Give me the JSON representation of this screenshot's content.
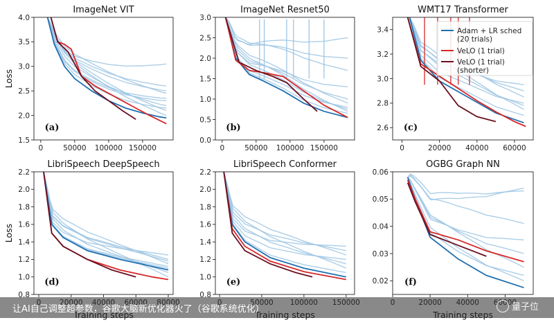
{
  "colors": {
    "adam": "#1f6fb0",
    "adam_faint": "#9ec6e3",
    "velo": "#d62728",
    "velo_short": "#6b0f1f"
  },
  "caption": {
    "text": "让AI自己调整超参数，谷歌大脑新优化器火了（谷歌系统优化）",
    "watermark": "量子位",
    "watermark_icon": "circle-logo"
  },
  "legend": {
    "entries": [
      "Adam + LR sched",
      " (20 trials)",
      "VeLO (1 trial)",
      "VeLO (1 trial)",
      " (shorter)"
    ],
    "placement": "top-right of WMT17 Transformer panel"
  },
  "chart_data": [
    {
      "type": "line",
      "title": "ImageNet VIT",
      "panel": "(a)",
      "ylabel": "Loss",
      "xlabel": "",
      "ylim": [
        1.5,
        4.0
      ],
      "xlim": [
        -10000,
        195000
      ],
      "xticks": [
        0,
        50000,
        100000,
        150000
      ],
      "xtick_labels": [
        "0",
        "50000",
        "100000",
        "150000"
      ],
      "yticks": [
        1.5,
        2.0,
        2.5,
        3.0,
        3.5,
        4.0
      ],
      "ytick_labels": [
        "1.5",
        "2.0",
        "2.5",
        "3.0",
        "3.5",
        "4.0"
      ],
      "adam_best": {
        "x": [
          10000,
          20000,
          35000,
          50000,
          75000,
          100000,
          125000,
          150000,
          175000,
          185000
        ],
        "y": [
          4.0,
          3.45,
          3.0,
          2.75,
          2.5,
          2.3,
          2.15,
          2.05,
          1.97,
          1.95
        ]
      },
      "adam_trials_final": [
        3.05,
        2.6,
        2.45,
        2.35,
        2.2,
        2.1,
        2.3,
        2.5,
        2.0,
        2.15
      ],
      "velo": {
        "x": [
          15000,
          25000,
          35000,
          45000,
          60000,
          80000,
          100000,
          120000,
          140000,
          160000,
          185000
        ],
        "y": [
          4.0,
          3.5,
          3.45,
          3.35,
          2.8,
          2.6,
          2.45,
          2.3,
          2.15,
          2.0,
          1.83
        ]
      },
      "velo_shorter": {
        "x": [
          15000,
          25000,
          40000,
          60000,
          80000,
          100000,
          120000,
          140000
        ],
        "y": [
          4.0,
          3.5,
          3.3,
          2.8,
          2.5,
          2.3,
          2.1,
          1.92
        ]
      }
    },
    {
      "type": "line",
      "title": "ImageNet Resnet50",
      "panel": "(b)",
      "ylabel": "",
      "xlabel": "",
      "ylim": [
        0.0,
        3.0
      ],
      "xlim": [
        -10000,
        195000
      ],
      "xticks": [
        0,
        50000,
        100000,
        150000
      ],
      "xtick_labels": [
        "0",
        "50000",
        "100000",
        "150000"
      ],
      "yticks": [
        0.0,
        0.5,
        1.0,
        1.5,
        2.0,
        2.5,
        3.0
      ],
      "ytick_labels": [
        "0.0",
        "0.5",
        "1.0",
        "1.5",
        "2.0",
        "2.5",
        "3.0"
      ],
      "adam_best": {
        "x": [
          5000,
          20000,
          40000,
          60000,
          90000,
          120000,
          150000,
          185000
        ],
        "y": [
          3.0,
          2.0,
          1.6,
          1.45,
          1.2,
          0.9,
          0.7,
          0.55
        ]
      },
      "adam_trials_final": [
        2.5,
        2.0,
        1.7,
        1.3,
        1.0,
        0.9,
        0.8,
        0.75,
        0.7,
        0.65
      ],
      "velo": {
        "x": [
          5000,
          20000,
          40000,
          60000,
          90000,
          120000,
          150000,
          185000
        ],
        "y": [
          3.0,
          1.95,
          1.7,
          1.65,
          1.55,
          1.2,
          0.85,
          0.55
        ]
      },
      "velo_shorter": {
        "x": [
          5000,
          25000,
          50000,
          75000,
          95000,
          120000,
          140000
        ],
        "y": [
          3.0,
          1.9,
          1.7,
          1.55,
          1.4,
          1.0,
          0.7
        ]
      }
    },
    {
      "type": "line",
      "title": "WMT17 Transformer",
      "panel": "(c)",
      "ylabel": "",
      "xlabel": "",
      "ylim": [
        2.5,
        3.5
      ],
      "xlim": [
        -5000,
        70000
      ],
      "xticks": [
        0,
        20000,
        40000,
        60000
      ],
      "xtick_labels": [
        "0",
        "20000",
        "40000",
        "60000"
      ],
      "yticks": [
        2.6,
        2.8,
        3.0,
        3.2,
        3.4
      ],
      "ytick_labels": [
        "2.6",
        "2.8",
        "3.0",
        "3.2",
        "3.4"
      ],
      "adam_best": {
        "x": [
          4000,
          10000,
          20000,
          35000,
          50000,
          65000
        ],
        "y": [
          3.5,
          3.15,
          2.98,
          2.85,
          2.72,
          2.64
        ]
      },
      "adam_trials_final": [
        2.95,
        2.9,
        2.85,
        2.8,
        2.78,
        2.75,
        2.7
      ],
      "velo": {
        "x": [
          3000,
          10000,
          20000,
          30000,
          40000,
          50000,
          60000,
          66000
        ],
        "y": [
          3.5,
          3.12,
          3.02,
          2.92,
          2.82,
          2.73,
          2.65,
          2.61
        ]
      },
      "velo_shorter": {
        "x": [
          3000,
          10000,
          20000,
          30000,
          40000,
          50000
        ],
        "y": [
          3.5,
          3.1,
          2.98,
          2.78,
          2.69,
          2.65
        ]
      }
    },
    {
      "type": "line",
      "title": "LibriSpeech DeepSpeech",
      "panel": "(d)",
      "ylabel": "Loss",
      "xlabel": "Training steps",
      "ylim": [
        0.8,
        2.2
      ],
      "xlim": [
        -3000,
        83000
      ],
      "xticks": [
        0,
        20000,
        40000,
        60000,
        80000
      ],
      "xtick_labels": [
        "0",
        "20000",
        "40000",
        "60000",
        "80000"
      ],
      "yticks": [
        0.8,
        1.0,
        1.2,
        1.4,
        1.6,
        1.8,
        2.0,
        2.2
      ],
      "ytick_labels": [
        "0.8",
        "1.0",
        "1.2",
        "1.4",
        "1.6",
        "1.8",
        "2.0",
        "2.2"
      ],
      "adam_best": {
        "x": [
          3000,
          8000,
          15000,
          30000,
          50000,
          70000,
          80000
        ],
        "y": [
          2.2,
          1.6,
          1.45,
          1.3,
          1.2,
          1.12,
          1.08
        ]
      },
      "adam_trials_final": [
        1.25,
        1.2,
        1.15,
        1.1,
        1.05,
        1.0,
        1.12,
        1.18
      ],
      "velo": {
        "x": [
          3000,
          8000,
          15000,
          30000,
          50000,
          70000,
          80000
        ],
        "y": [
          2.2,
          1.5,
          1.35,
          1.2,
          1.08,
          1.0,
          0.97
        ]
      },
      "velo_shorter": {
        "x": [
          3000,
          8000,
          15000,
          30000,
          45000,
          60000
        ],
        "y": [
          2.2,
          1.5,
          1.35,
          1.2,
          1.08,
          1.0
        ]
      }
    },
    {
      "type": "line",
      "title": "LibriSpeech Conformer",
      "panel": "(e)",
      "ylabel": "",
      "xlabel": "Training steps",
      "ylim": [
        0.8,
        2.2
      ],
      "xlim": [
        -5000,
        160000
      ],
      "xticks": [
        0,
        50000,
        100000,
        150000
      ],
      "xtick_labels": [
        "0",
        "50000",
        "100000",
        "150000"
      ],
      "yticks": [
        0.8,
        1.0,
        1.2,
        1.4,
        1.6,
        1.8,
        2.0,
        2.2
      ],
      "ytick_labels": [
        "0.8",
        "1.0",
        "1.2",
        "1.4",
        "1.6",
        "1.8",
        "2.0",
        "2.2"
      ],
      "adam_best": {
        "x": [
          5000,
          15000,
          30000,
          60000,
          100000,
          150000
        ],
        "y": [
          2.2,
          1.6,
          1.4,
          1.22,
          1.1,
          1.0
        ]
      },
      "adam_trials_final": [
        1.35,
        1.3,
        1.25,
        1.2,
        1.15,
        1.1,
        1.05
      ],
      "velo": {
        "x": [
          5000,
          15000,
          30000,
          60000,
          100000,
          150000
        ],
        "y": [
          2.2,
          1.55,
          1.35,
          1.18,
          1.06,
          0.97
        ]
      },
      "velo_shorter": {
        "x": [
          5000,
          15000,
          30000,
          60000,
          90000,
          110000
        ],
        "y": [
          2.2,
          1.5,
          1.3,
          1.15,
          1.05,
          1.0
        ]
      }
    },
    {
      "type": "line",
      "title": "OGBG Graph NN",
      "panel": "(f)",
      "ylabel": "",
      "xlabel": "Training steps",
      "ylim": [
        0.015,
        0.06
      ],
      "xlim": [
        0,
        75000
      ],
      "xticks": [
        0,
        20000,
        40000,
        60000
      ],
      "xtick_labels": [
        "0",
        "20000",
        "40000",
        "60000"
      ],
      "yticks": [
        0.02,
        0.03,
        0.04,
        0.05,
        0.06
      ],
      "ytick_labels": [
        "0.02",
        "0.03",
        "0.04",
        "0.05",
        "0.06"
      ],
      "adam_best": {
        "x": [
          8000,
          12000,
          20000,
          35000,
          50000,
          70000
        ],
        "y": [
          0.058,
          0.05,
          0.036,
          0.028,
          0.022,
          0.0175
        ]
      },
      "adam_trials_final": [
        0.054,
        0.053,
        0.041,
        0.035,
        0.03,
        0.025,
        0.022,
        0.02
      ],
      "velo": {
        "x": [
          8000,
          12000,
          20000,
          35000,
          50000,
          70000
        ],
        "y": [
          0.057,
          0.05,
          0.038,
          0.035,
          0.031,
          0.027
        ]
      },
      "velo_shorter": {
        "x": [
          8000,
          12000,
          20000,
          35000,
          50000
        ],
        "y": [
          0.056,
          0.049,
          0.037,
          0.033,
          0.029
        ]
      }
    }
  ]
}
